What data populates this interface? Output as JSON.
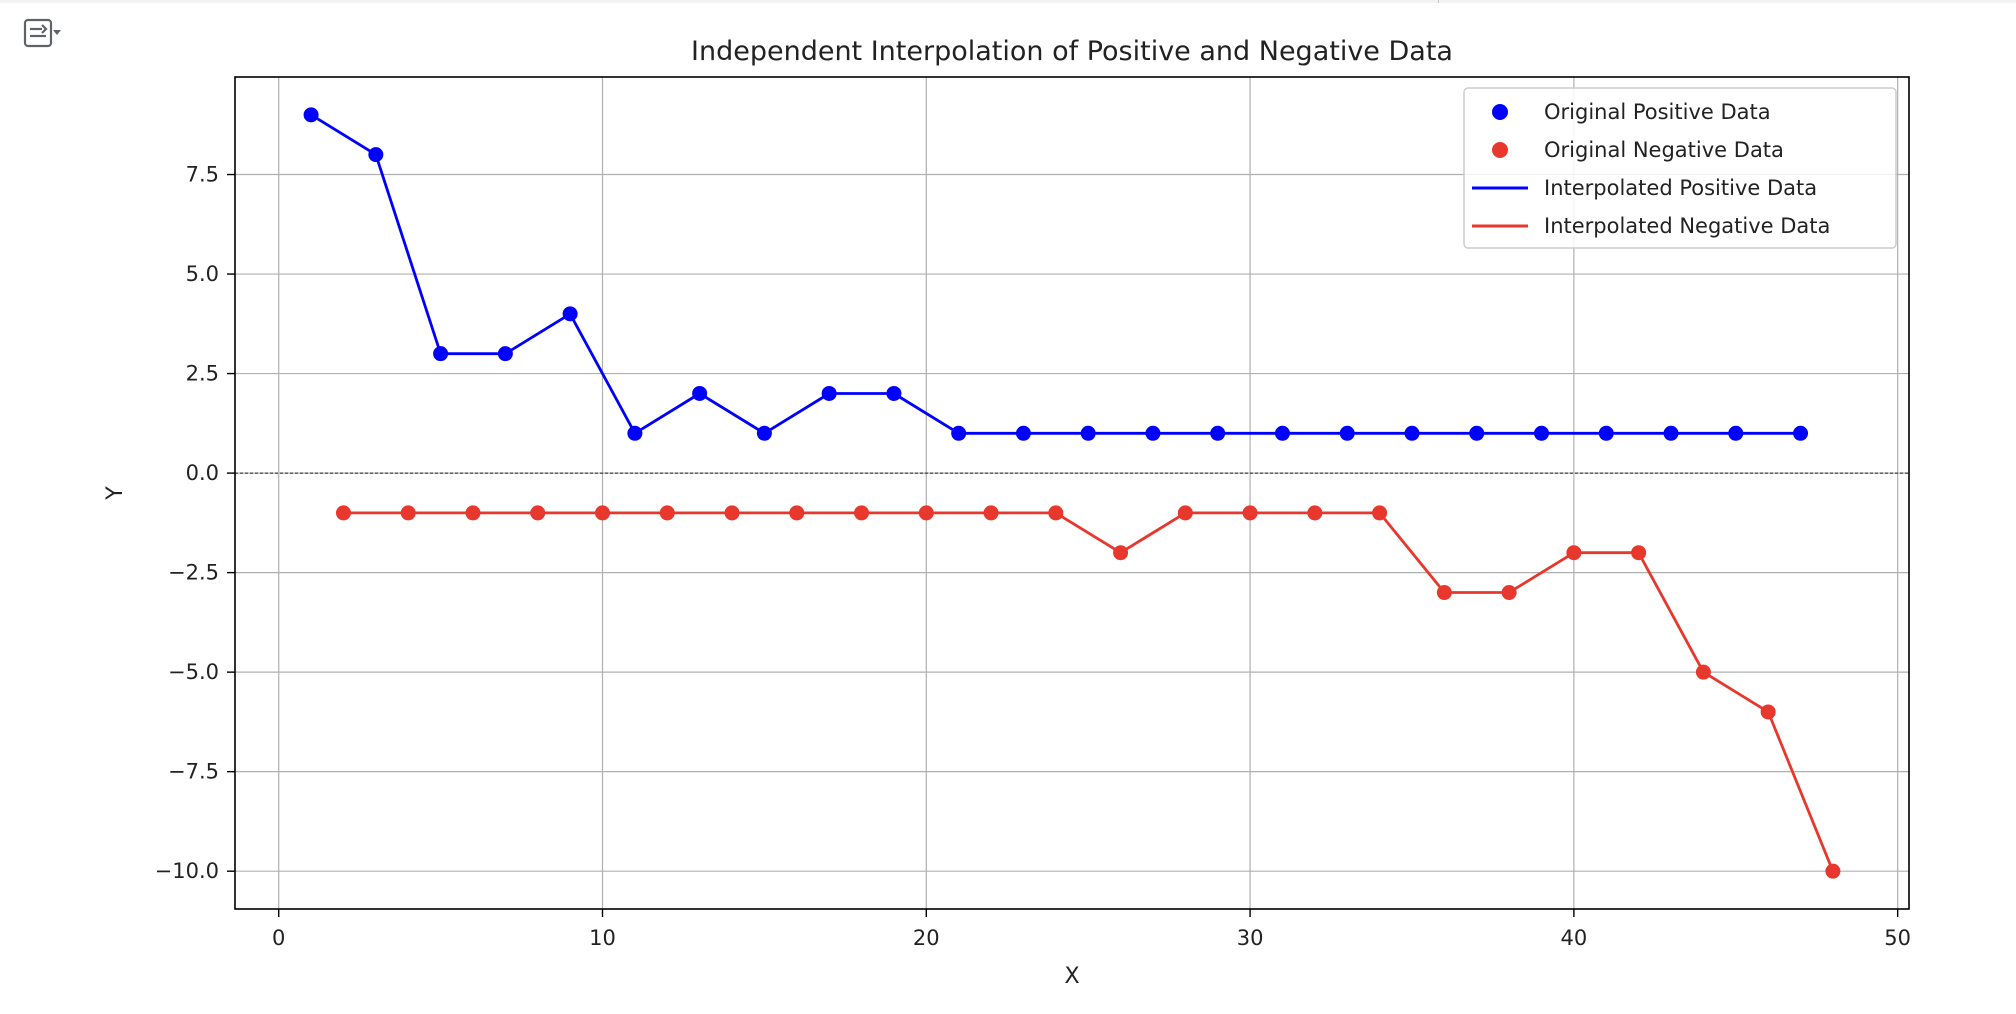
{
  "chart_data": {
    "type": "line",
    "title": "Independent Interpolation of Positive and Negative Data",
    "xlabel": "X",
    "ylabel": "Y",
    "xlim": [
      -1.35,
      50.35
    ],
    "ylim": [
      -10.95,
      9.95
    ],
    "xticks": [
      0,
      10,
      20,
      30,
      40,
      50
    ],
    "xtick_labels": [
      "0",
      "10",
      "20",
      "30",
      "40",
      "50"
    ],
    "yticks": [
      -10,
      -7.5,
      -5,
      -2.5,
      0,
      2.5,
      5,
      7.5
    ],
    "ytick_labels": [
      "−10.0",
      "−7.5",
      "−5.0",
      "−2.5",
      "0.0",
      "2.5",
      "5.0",
      "7.5"
    ],
    "grid": true,
    "zero_line": true,
    "legend_position": "top-right",
    "legend": [
      {
        "label": "Original Positive Data",
        "kind": "marker",
        "color": "#0000ff"
      },
      {
        "label": "Original Negative Data",
        "kind": "marker",
        "color": "#e8372c"
      },
      {
        "label": "Interpolated Positive Data",
        "kind": "line",
        "color": "#0000ff"
      },
      {
        "label": "Interpolated Negative Data",
        "kind": "line",
        "color": "#e8372c"
      }
    ],
    "series": [
      {
        "name": "Original Positive Data",
        "color": "#0000ff",
        "x": [
          1,
          3,
          5,
          7,
          9,
          11,
          13,
          15,
          17,
          19,
          21,
          23,
          25,
          27,
          29,
          31,
          33,
          35,
          37,
          39,
          41,
          43,
          45,
          47
        ],
        "y": [
          9,
          8,
          3,
          3,
          4,
          1,
          2,
          1,
          2,
          2,
          1,
          1,
          1,
          1,
          1,
          1,
          1,
          1,
          1,
          1,
          1,
          1,
          1,
          1
        ]
      },
      {
        "name": "Original Negative Data",
        "color": "#e8372c",
        "x": [
          2,
          4,
          6,
          8,
          10,
          12,
          14,
          16,
          18,
          20,
          22,
          24,
          26,
          28,
          30,
          32,
          34,
          36,
          38,
          40,
          42,
          44,
          46,
          48
        ],
        "y": [
          -1,
          -1,
          -1,
          -1,
          -1,
          -1,
          -1,
          -1,
          -1,
          -1,
          -1,
          -1,
          -2,
          -1,
          -1,
          -1,
          -1,
          -3,
          -3,
          -2,
          -2,
          -5,
          -6,
          -10
        ]
      }
    ]
  }
}
